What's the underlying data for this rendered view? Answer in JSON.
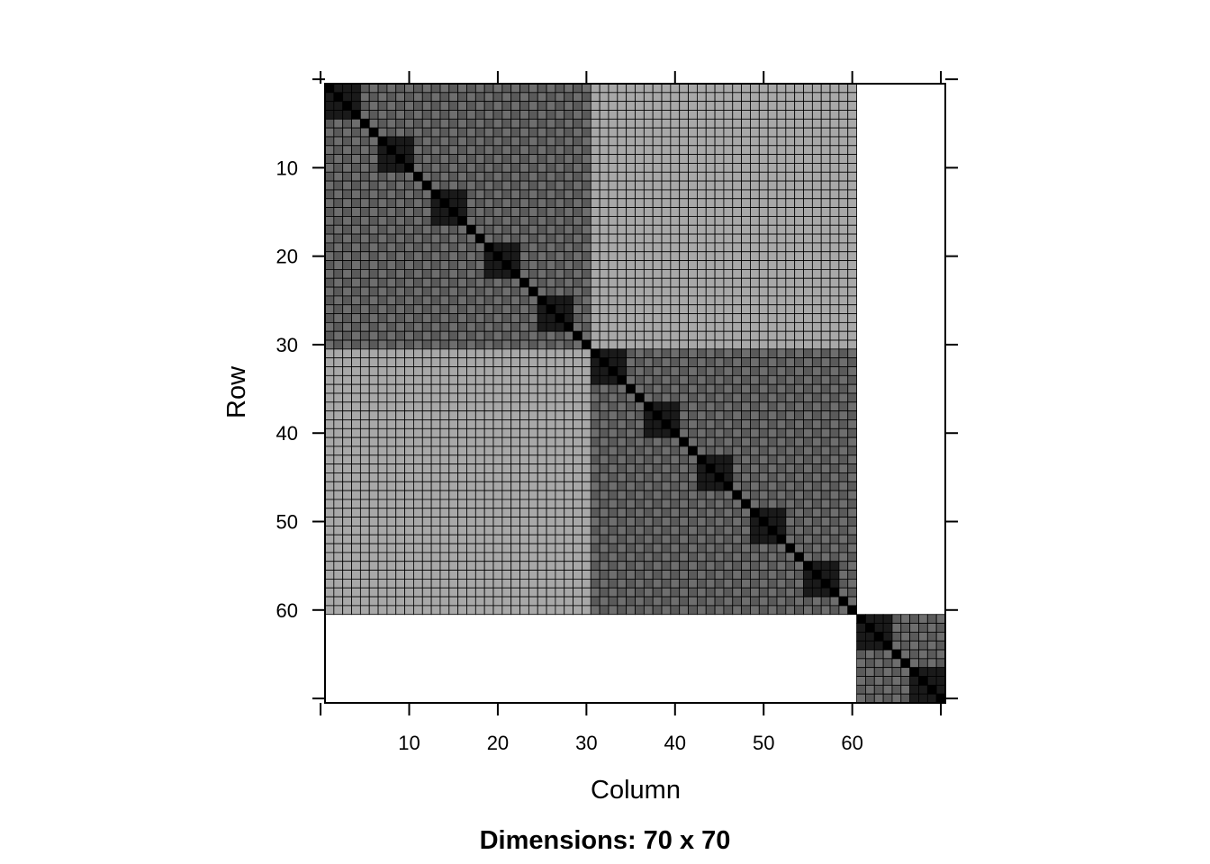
{
  "chart_data": {
    "type": "heatmap",
    "title": "",
    "caption": "Dimensions: 70 x 70",
    "xlabel": "Column",
    "ylabel": "Row",
    "nrow": 70,
    "ncol": 70,
    "xlim": [
      1,
      70
    ],
    "ylim": [
      1,
      70
    ],
    "x_ticks": [
      10,
      20,
      30,
      40,
      50,
      60
    ],
    "y_ticks": [
      10,
      20,
      30,
      40,
      50,
      60
    ],
    "grid": true,
    "empty_color": "#ffffff",
    "cell_border_color": "#000000",
    "shade_scale": {
      "diagonal": "#000000",
      "within_block": "#1a1a1a",
      "within_group": "#5a5a5a",
      "within_group_variant": "#6e6e6e",
      "between_groups": "#a8a8a8"
    },
    "groups": [
      {
        "rows": [
          1,
          30
        ],
        "cols": [
          1,
          30
        ]
      },
      {
        "rows": [
          31,
          60
        ],
        "cols": [
          31,
          60
        ]
      },
      {
        "rows": [
          61,
          70
        ],
        "cols": [
          61,
          70
        ]
      }
    ],
    "blocks": [
      {
        "start": 1,
        "end": 4
      },
      {
        "start": 7,
        "end": 10
      },
      {
        "start": 13,
        "end": 16
      },
      {
        "start": 19,
        "end": 22
      },
      {
        "start": 25,
        "end": 28
      },
      {
        "start": 31,
        "end": 34
      },
      {
        "start": 37,
        "end": 40
      },
      {
        "start": 43,
        "end": 46
      },
      {
        "start": 49,
        "end": 52
      },
      {
        "start": 55,
        "end": 58
      },
      {
        "start": 61,
        "end": 64
      },
      {
        "start": 67,
        "end": 70
      }
    ],
    "nonzero_regions": [
      {
        "rows": [
          1,
          60
        ],
        "cols": [
          1,
          60
        ]
      },
      {
        "rows": [
          61,
          70
        ],
        "cols": [
          61,
          70
        ]
      }
    ]
  }
}
